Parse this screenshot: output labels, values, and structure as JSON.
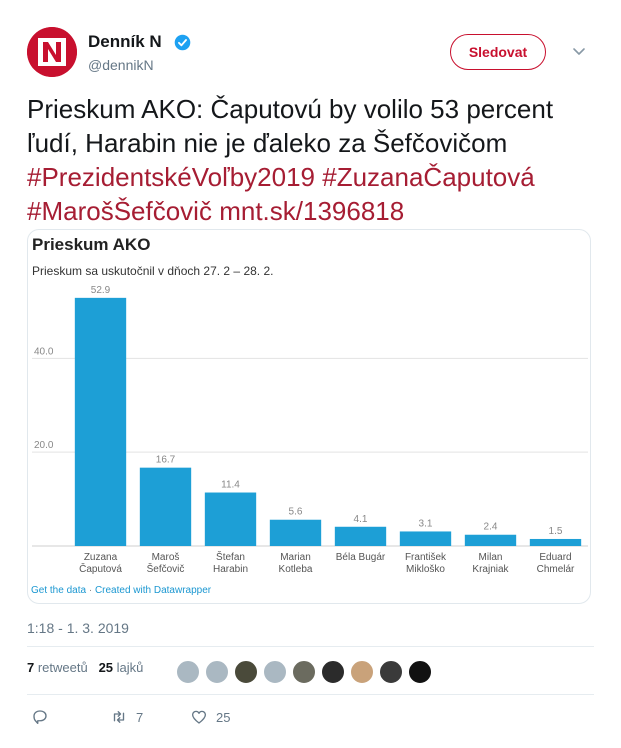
{
  "account": {
    "name": "Denník N",
    "handle": "@dennikN",
    "follow_label": "Sledovat"
  },
  "tweet": {
    "text_plain": "Prieskum AKO: Čaputovú by volilo 53 percent ľudí, Harabin nie je ďaleko za Šefčovičom ",
    "hashtag1": "#PrezidentskéVoľby2019",
    "hashtag2": "#ZuzanaČaputová",
    "hashtag3": "#MarošŠefčovič",
    "link": "mnt.sk/1396818",
    "timestamp": "1:18 - 1. 3. 2019"
  },
  "card": {
    "credit_data": "Get the data",
    "credit_sep": " · ",
    "credit_dw": "Created with Datawrapper"
  },
  "chart_data": {
    "type": "bar",
    "title": "Prieskum AKO",
    "subtitle": "Prieskum sa uskutočnil v dňoch 27. 2 – 28. 2.",
    "categories": [
      [
        "Zuzana",
        "Čaputová"
      ],
      [
        "Maroš",
        "Šefčovič"
      ],
      [
        "Štefan",
        "Harabin"
      ],
      [
        "Marian",
        "Kotleba"
      ],
      [
        "Béla Bugár",
        ""
      ],
      [
        "František",
        "Mikloško"
      ],
      [
        "Milan",
        "Krajniak"
      ],
      [
        "Eduard",
        "Chmelár"
      ]
    ],
    "values": [
      52.9,
      16.7,
      11.4,
      5.6,
      4.1,
      3.1,
      2.4,
      1.5
    ],
    "value_labels": [
      "52.9",
      "16.7",
      "11.4",
      "5.6",
      "4.1",
      "3.1",
      "2.4",
      "1.5"
    ],
    "yticks": [
      20,
      40
    ],
    "ytick_labels": [
      "20.0",
      "40.0"
    ],
    "ylim": [
      0,
      55
    ],
    "bar_color": "#1d9fd6",
    "grid": true
  },
  "stats": {
    "retweets_count": "7",
    "retweets_label": " retweetů",
    "likes_count": "25",
    "likes_label": " lajků"
  },
  "actions": {
    "reply": "",
    "retweet": "7",
    "like": "25"
  },
  "colors": {
    "brand": "#c8102e",
    "hashtag": "#a61d33",
    "muted": "#657786"
  }
}
